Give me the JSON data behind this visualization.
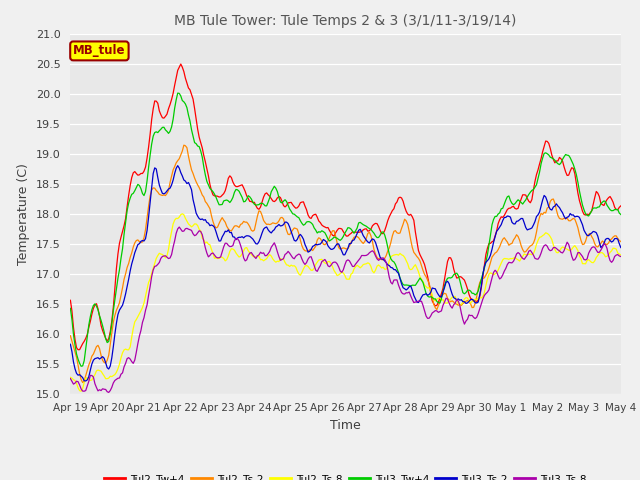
{
  "title": "MB Tule Tower: Tule Temps 2 & 3 (3/1/11-3/19/14)",
  "ylabel": "Temperature (C)",
  "xlabel": "Time",
  "ylim": [
    15.0,
    21.0
  ],
  "yticks": [
    15.0,
    15.5,
    16.0,
    16.5,
    17.0,
    17.5,
    18.0,
    18.5,
    19.0,
    19.5,
    20.0,
    20.5,
    21.0
  ],
  "xtick_labels": [
    "Apr 19",
    "Apr 20",
    "Apr 21",
    "Apr 22",
    "Apr 23",
    "Apr 24",
    "Apr 25",
    "Apr 26",
    "Apr 27",
    "Apr 28",
    "Apr 29",
    "Apr 30",
    "May 1",
    "May 2",
    "May 3",
    "May 4"
  ],
  "legend_box_label": "MB_tule",
  "legend_box_color": "#ffff00",
  "legend_box_text_color": "#990000",
  "background_color": "#e8e8e8",
  "plot_bg_color": "#e8e8e8",
  "fig_bg_color": "#f0f0f0",
  "title_color": "#555555",
  "grid_color": "#ffffff",
  "series": [
    {
      "name": "Tul2_Tw+4",
      "color": "#ff0000"
    },
    {
      "name": "Tul2_Ts-2",
      "color": "#ff8800"
    },
    {
      "name": "Tul2_Ts-8",
      "color": "#ffff00"
    },
    {
      "name": "Tul3_Tw+4",
      "color": "#00cc00"
    },
    {
      "name": "Tul3_Ts-2",
      "color": "#0000cc"
    },
    {
      "name": "Tul3_Ts-8",
      "color": "#aa00aa"
    }
  ]
}
